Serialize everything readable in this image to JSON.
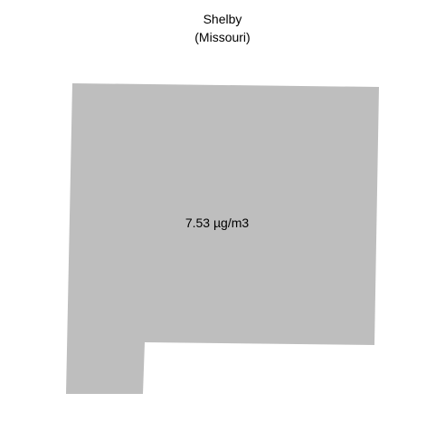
{
  "map": {
    "county": "Shelby",
    "state": "(Missouri)",
    "value_label": "7.53 µg/m3",
    "fill_color": "#bebebe",
    "background_color": "#ffffff"
  }
}
